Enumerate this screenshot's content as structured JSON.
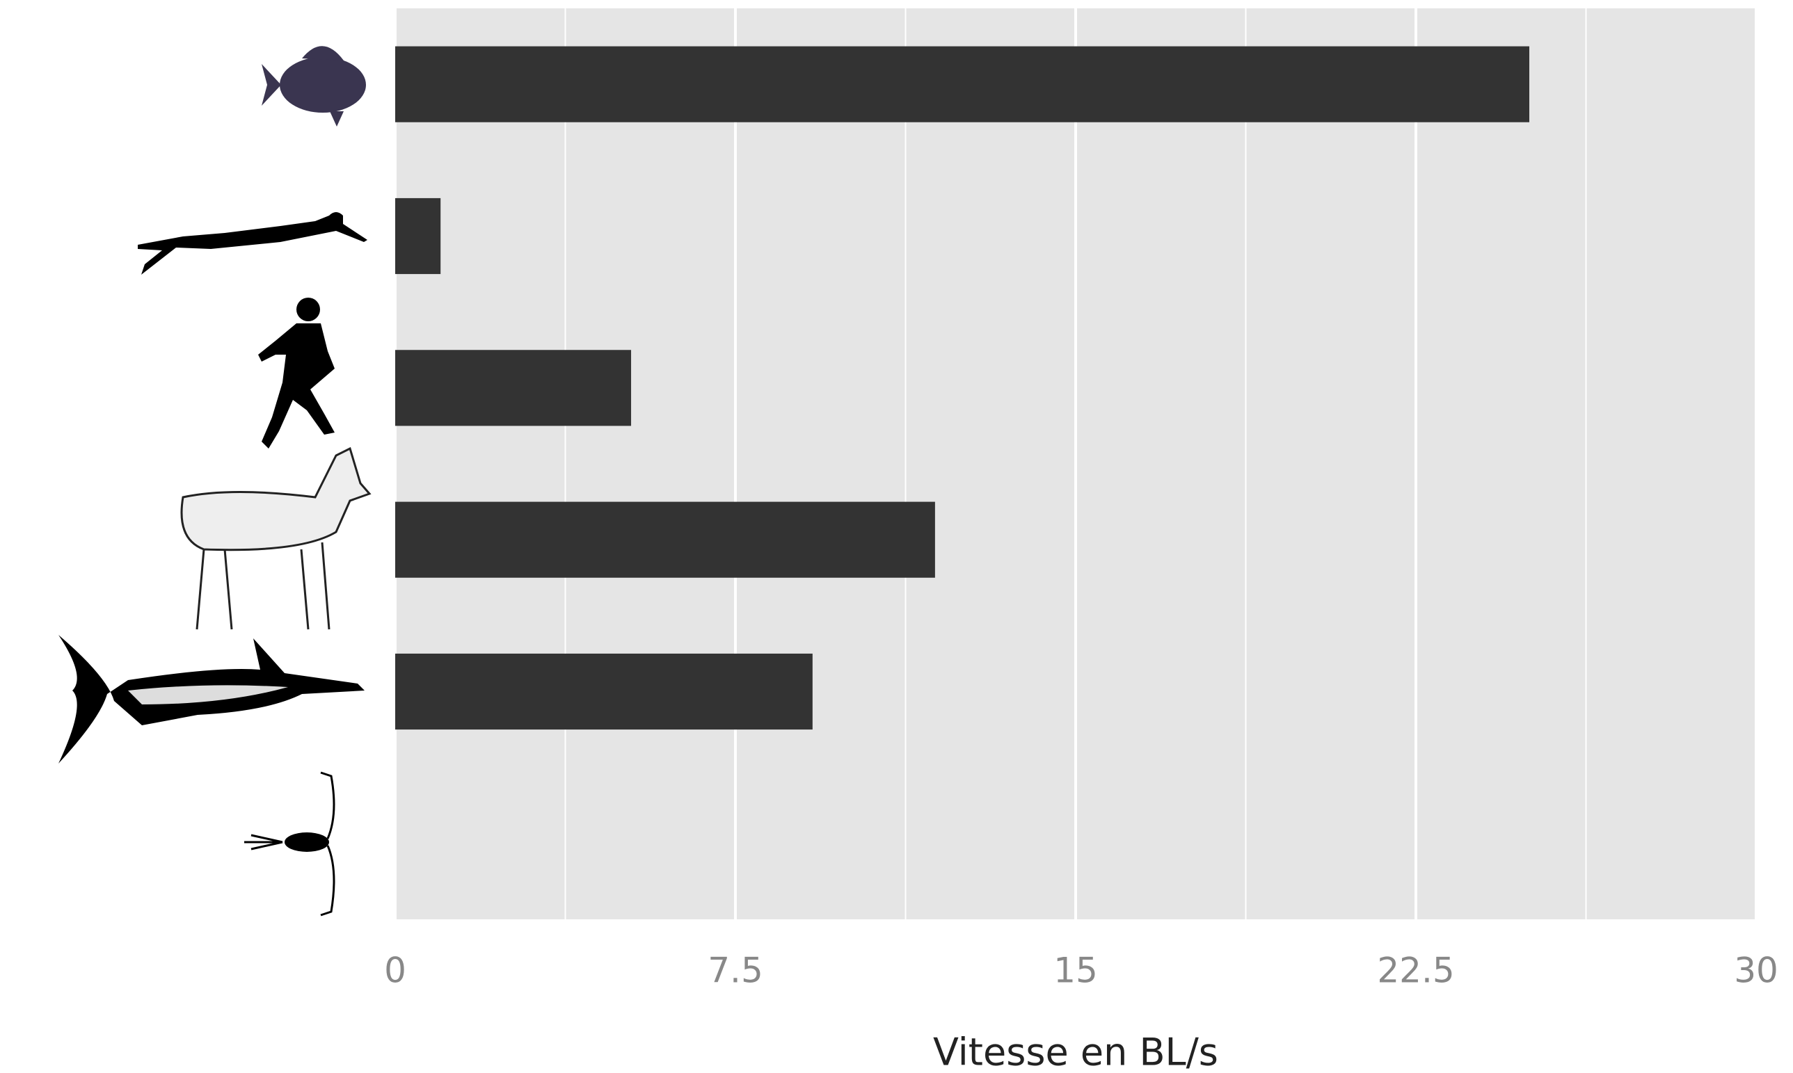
{
  "chart_data": {
    "type": "hbar",
    "categories": [
      null,
      null,
      null,
      null,
      null,
      null
    ],
    "values": [
      25,
      1,
      5.2,
      11.9,
      9.2,
      0
    ],
    "color": "#333333",
    "xlabel": "Vitesse en BL/s",
    "xlim": [
      0,
      30
    ],
    "xticks": [
      0,
      7.5,
      15,
      22.5,
      30
    ],
    "grid": true
  }
}
